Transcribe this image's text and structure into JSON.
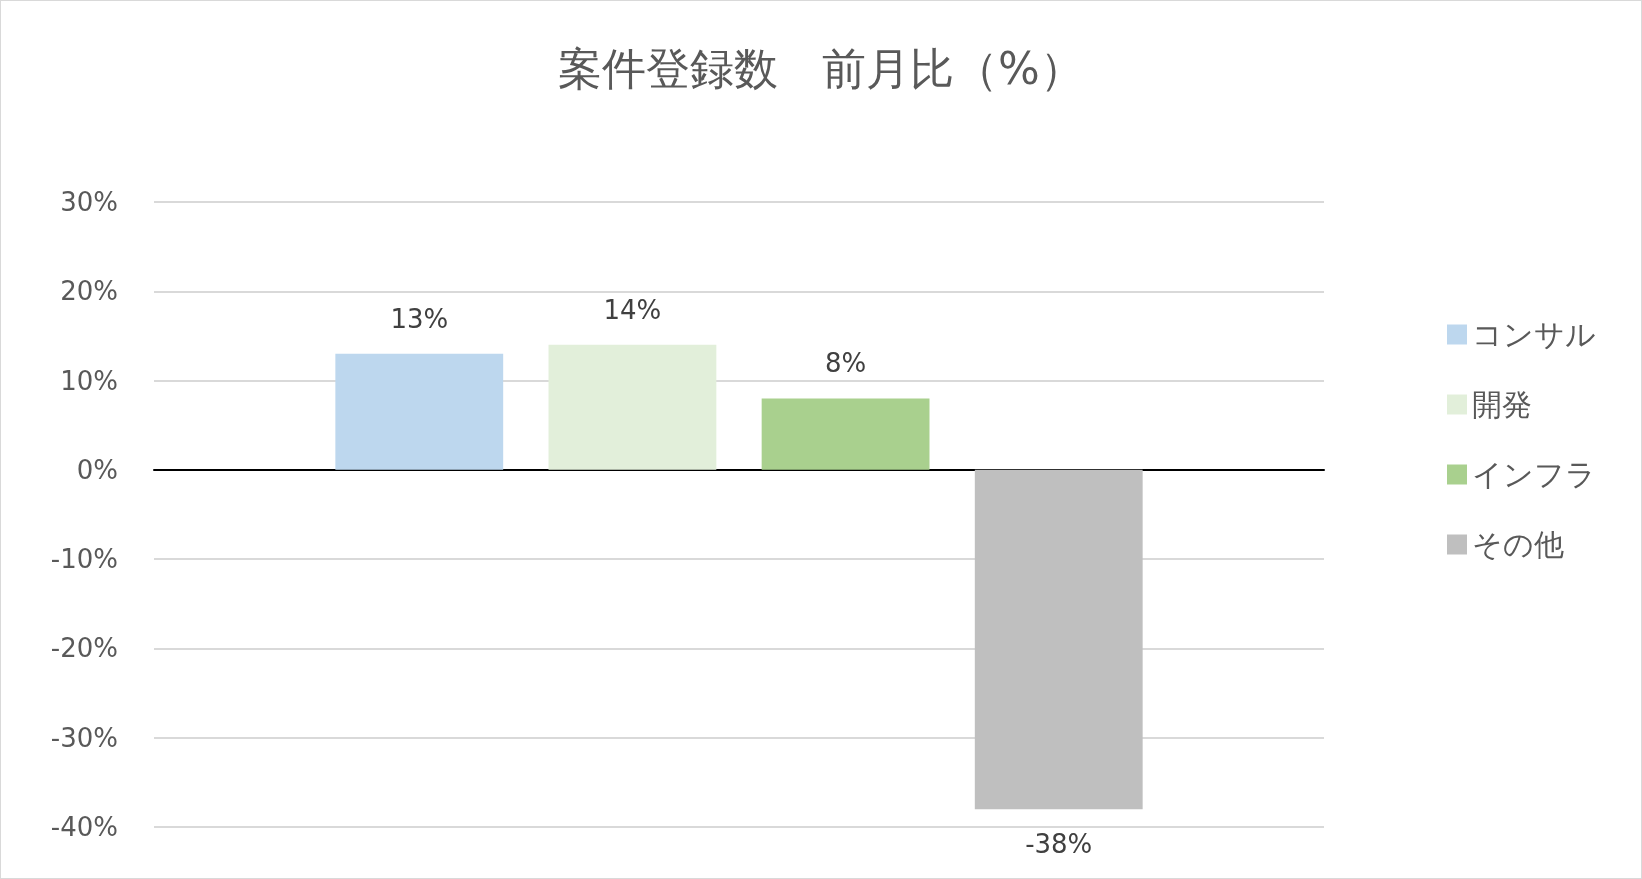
{
  "chart_data": {
    "type": "bar",
    "title": "案件登録数　前月比（%）",
    "categories": [
      null
    ],
    "series": [
      {
        "name": "コンサル",
        "color": "#bdd7ee",
        "values": [
          13
        ],
        "value_labels": [
          "13%"
        ]
      },
      {
        "name": "開発",
        "color": "#e2efda",
        "values": [
          14
        ],
        "value_labels": [
          "14%"
        ]
      },
      {
        "name": "インフラ",
        "color": "#a9d08e",
        "values": [
          8
        ],
        "value_labels": [
          "8%"
        ]
      },
      {
        "name": "その他",
        "color": "#bfbfbf",
        "values": [
          -38
        ],
        "value_labels": [
          "-38%"
        ]
      }
    ],
    "ylim": [
      -40,
      30
    ],
    "yticks": [
      {
        "value": -40,
        "label": "-40%"
      },
      {
        "value": -30,
        "label": "-30%"
      },
      {
        "value": -20,
        "label": "-20%"
      },
      {
        "value": -10,
        "label": "-10%"
      },
      {
        "value": 0,
        "label": "0%"
      },
      {
        "value": 10,
        "label": "10%"
      },
      {
        "value": 20,
        "label": "20%"
      },
      {
        "value": 30,
        "label": "30%"
      }
    ],
    "grid": "y",
    "legend": "right"
  }
}
